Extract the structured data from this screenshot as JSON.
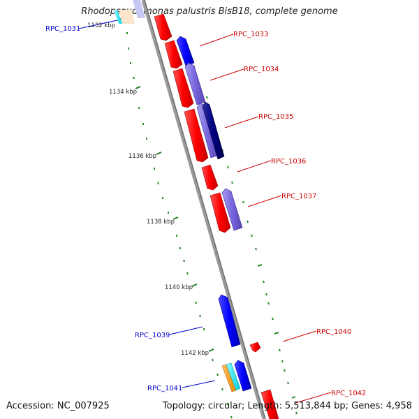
{
  "title": "Rhodopseudomonas palustris BisB18, complete genome",
  "footer": {
    "accession": "Accession: NC_007925",
    "summary": "Topology: circular; Length: 5,513,844 bp; Genes: 4,958"
  },
  "colors": {
    "backbone": "#8c8c8c",
    "tick": "#2e8b2e",
    "forward_gene": "#ff0000",
    "reverse_gene": "#0000ff",
    "reverse_gene_alt": "#7766dd",
    "reverse_gene_dark": "#000080",
    "label_reverse": "#0000cc",
    "label_forward": "#cc0000",
    "orange_feature": "#ff9900",
    "cyan_feature": "#00e5ee"
  },
  "scale_labels": [
    "1132 kbp",
    "1134 kbp",
    "1136 kbp",
    "1138 kbp",
    "1140 kbp",
    "1142 kbp"
  ],
  "gene_labels": [
    {
      "name": "RPC_1031",
      "strand": "reverse"
    },
    {
      "name": "RPC_1033",
      "strand": "forward"
    },
    {
      "name": "RPC_1034",
      "strand": "forward"
    },
    {
      "name": "RPC_1035",
      "strand": "forward"
    },
    {
      "name": "RPC_1036",
      "strand": "forward"
    },
    {
      "name": "RPC_1037",
      "strand": "forward"
    },
    {
      "name": "RPC_1039",
      "strand": "reverse"
    },
    {
      "name": "RPC_1040",
      "strand": "forward"
    },
    {
      "name": "RPC_1041",
      "strand": "reverse"
    },
    {
      "name": "RPC_1042",
      "strand": "forward"
    }
  ]
}
